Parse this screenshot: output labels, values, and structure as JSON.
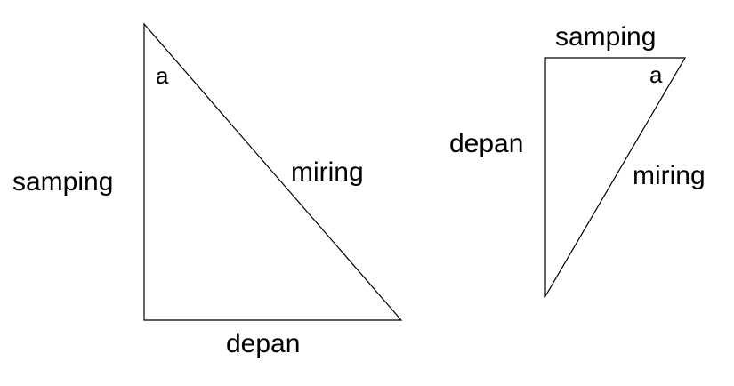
{
  "triangle_left": {
    "labels": {
      "angle": "a",
      "adjacent": "samping",
      "hypotenuse": "miring",
      "opposite": "depan"
    }
  },
  "triangle_right": {
    "labels": {
      "adjacent": "samping",
      "angle": "a",
      "opposite": "depan",
      "hypotenuse": "miring"
    }
  },
  "colors": {
    "stroke": "#000000",
    "text": "#000000",
    "background": "#ffffff"
  }
}
